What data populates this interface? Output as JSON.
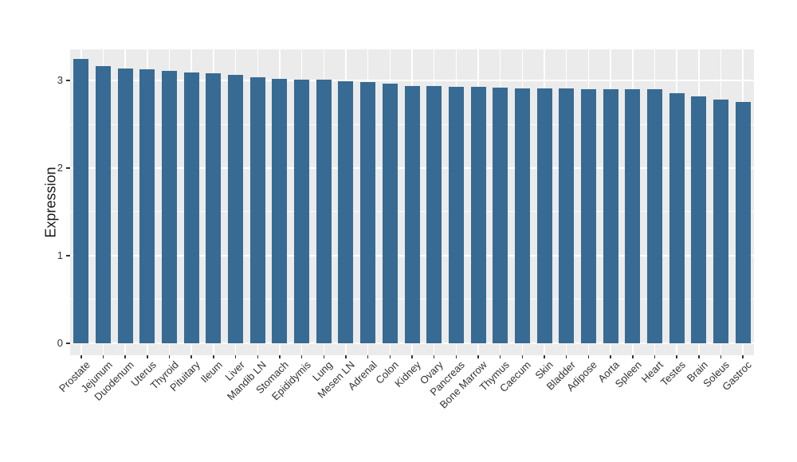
{
  "figure": {
    "background": "#ffffff",
    "panel_background": "#ebebeb",
    "grid_major_color": "#ffffff",
    "grid_minor_color": "#fdfdfd",
    "axis_tick_color": "#333333",
    "axis_text_color": "#333333",
    "axis_title_color": "#1a1a1a"
  },
  "chart_data": {
    "type": "bar",
    "title": "",
    "xlabel": "",
    "ylabel": "Expression",
    "bar_color": "#376b94",
    "legend": false,
    "grid": true,
    "x_tick_rotation": -45,
    "ylim": [
      -0.137,
      3.355
    ],
    "y_ticks": [
      0,
      1,
      2,
      3
    ],
    "y_tick_labels": [
      "0",
      "1",
      "2",
      "3"
    ],
    "y_minor_ticks": [
      0.5,
      1.5,
      2.5
    ],
    "categories": [
      "Prostate",
      "Jejunum",
      "Duodenum",
      "Uterus",
      "Thyroid",
      "Pituitary",
      "Ileum",
      "Liver",
      "Mandib LN",
      "Stomach",
      "Epididymis",
      "Lung",
      "Mesen LN",
      "Adrenal",
      "Colon",
      "Kidney",
      "Ovary",
      "Pancreas",
      "Bone Marrow",
      "Thymus",
      "Caecum",
      "Skin",
      "Bladder",
      "Adipose",
      "Aorta",
      "Spleen",
      "Heart",
      "Testes",
      "Brain",
      "Soleus",
      "Gastroc"
    ],
    "values": [
      3.25,
      3.163,
      3.136,
      3.124,
      3.114,
      3.09,
      3.085,
      3.066,
      3.034,
      3.016,
      3.009,
      3.005,
      2.988,
      2.98,
      2.962,
      2.937,
      2.933,
      2.93,
      2.927,
      2.918,
      2.913,
      2.911,
      2.906,
      2.904,
      2.902,
      2.9,
      2.898,
      2.852,
      2.815,
      2.779,
      2.757
    ]
  }
}
